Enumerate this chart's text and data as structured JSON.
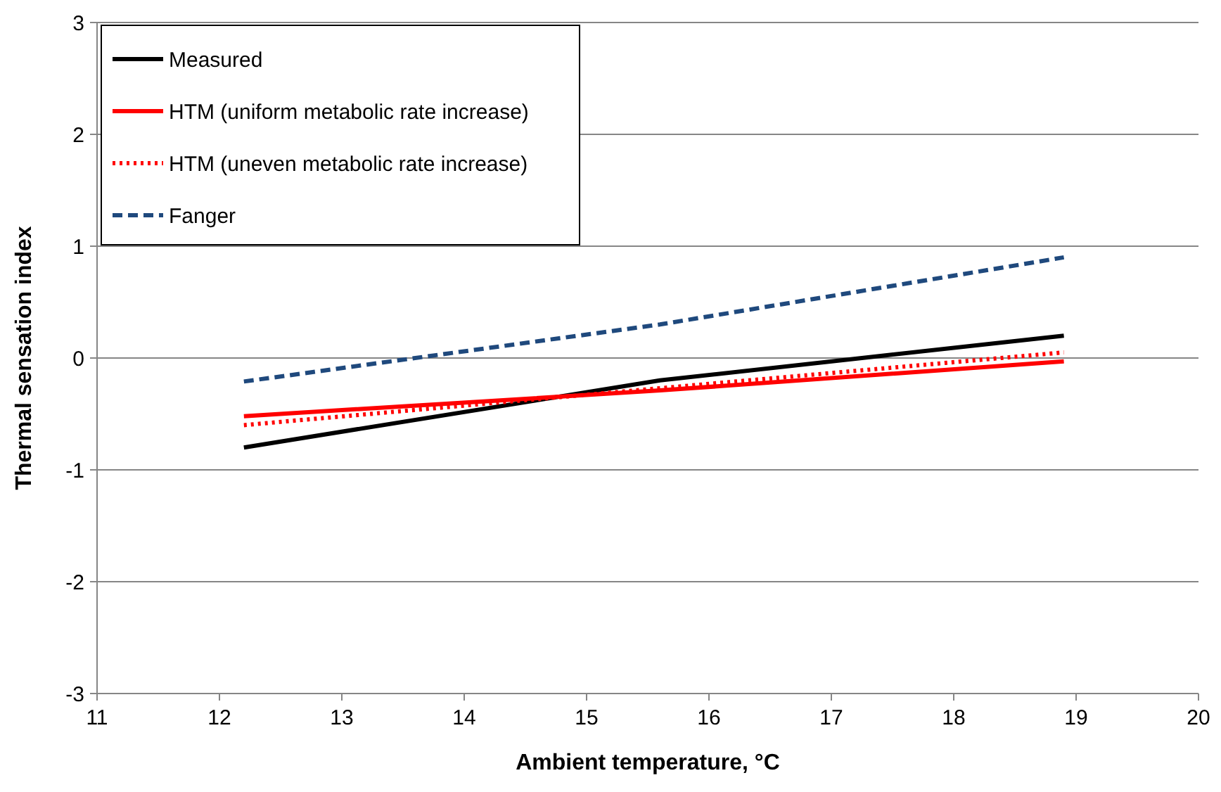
{
  "chart_data": {
    "type": "line",
    "xlabel": "Ambient temperature, °C",
    "ylabel": "Thermal sensation index",
    "x": [
      12.2,
      15.6,
      18.9
    ],
    "series": [
      {
        "name": "Measured",
        "color": "#000000",
        "values": [
          -0.8,
          -0.2,
          0.2
        ],
        "line_style": "solid"
      },
      {
        "name": "HTM (uniform metabolic rate increase)",
        "color": "#ff0000",
        "values": [
          -0.52,
          -0.29,
          -0.03
        ],
        "line_style": "solid"
      },
      {
        "name": "HTM (uneven metabolic rate increase)",
        "color": "#ff0000",
        "values": [
          -0.6,
          -0.27,
          0.05
        ],
        "line_style": "dotted"
      },
      {
        "name": "Fanger",
        "color": "#1f497d",
        "values": [
          -0.21,
          0.3,
          0.9
        ],
        "line_style": "dashed"
      }
    ],
    "xlim": [
      11,
      20
    ],
    "xticks": [
      11,
      12,
      13,
      14,
      15,
      16,
      17,
      18,
      19,
      20
    ],
    "ylim": [
      -3,
      3
    ],
    "yticks": [
      -3,
      -2,
      -1,
      0,
      1,
      2,
      3
    ],
    "grid": "y",
    "legend": "top left",
    "marker": "none"
  }
}
